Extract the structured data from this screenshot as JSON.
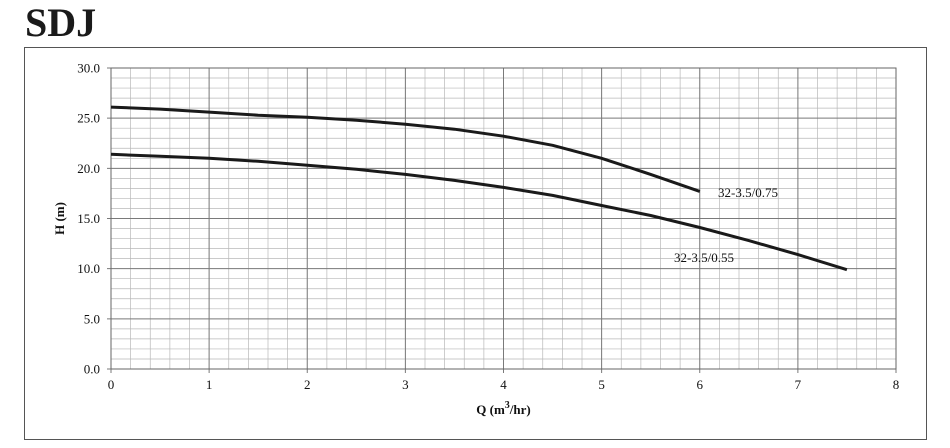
{
  "header": {
    "title": "SDJ"
  },
  "chart_data": {
    "type": "line",
    "title": "",
    "xlabel": "Q (m3/hr)",
    "xlabel_parts": {
      "before": "Q (m",
      "sup": "3",
      "after": "/hr)"
    },
    "ylabel": "H (m)",
    "xlim": [
      0,
      8
    ],
    "ylim": [
      0,
      30
    ],
    "x_ticks": [
      "0",
      "1",
      "2",
      "3",
      "4",
      "5",
      "6",
      "7",
      "8"
    ],
    "y_ticks": [
      "0.0",
      "5.0",
      "10.0",
      "15.0",
      "20.0",
      "25.0",
      "30.0"
    ],
    "grid": true,
    "x_minor_step": 0.2,
    "y_minor_step": 1,
    "series": [
      {
        "name": "32-3.5/0.75",
        "color": "#1a1a1a",
        "points": [
          [
            0,
            26.1
          ],
          [
            0.5,
            25.9
          ],
          [
            1,
            25.6
          ],
          [
            1.5,
            25.3
          ],
          [
            2,
            25.1
          ],
          [
            2.5,
            24.8
          ],
          [
            3,
            24.4
          ],
          [
            3.5,
            23.9
          ],
          [
            4,
            23.2
          ],
          [
            4.5,
            22.3
          ],
          [
            5,
            21.0
          ],
          [
            5.5,
            19.4
          ],
          [
            6,
            17.7
          ]
        ]
      },
      {
        "name": "32-3.5/0.55",
        "color": "#1a1a1a",
        "points": [
          [
            0,
            21.4
          ],
          [
            0.5,
            21.2
          ],
          [
            1,
            21.0
          ],
          [
            1.5,
            20.7
          ],
          [
            2,
            20.3
          ],
          [
            2.5,
            19.9
          ],
          [
            3,
            19.4
          ],
          [
            3.5,
            18.8
          ],
          [
            4,
            18.1
          ],
          [
            4.5,
            17.3
          ],
          [
            5,
            16.3
          ],
          [
            5.5,
            15.3
          ],
          [
            6,
            14.1
          ],
          [
            6.5,
            12.8
          ],
          [
            7,
            11.4
          ],
          [
            7.5,
            9.9
          ]
        ]
      }
    ]
  }
}
